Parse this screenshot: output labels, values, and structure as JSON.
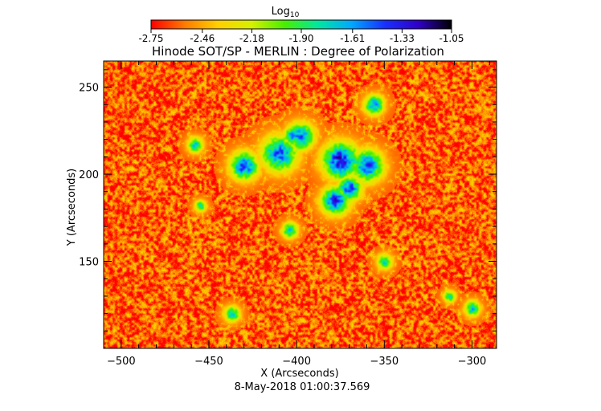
{
  "chart_data": {
    "type": "heatmap",
    "title": "Hinode SOT/SP - MERLIN : Degree of Polarization",
    "xlabel": "X (Arcseconds)",
    "ylabel": "Y (Arcseconds)",
    "timestamp": "8-May-2018 01:00:37.569",
    "xlim": [
      -510,
      -286
    ],
    "ylim": [
      100,
      265
    ],
    "xticks": [
      -500,
      -450,
      -400,
      -350,
      -300
    ],
    "yticks": [
      150,
      200,
      250
    ],
    "colorbar": {
      "label_base": "Log",
      "label_sub": "10",
      "range": [
        -2.75,
        -1.05
      ],
      "ticks": [
        "-2.75",
        "-2.46",
        "-2.18",
        "-1.90",
        "-1.61",
        "-1.33",
        "-1.05"
      ],
      "colormap": [
        "#ff0000",
        "#ff7a00",
        "#ffd000",
        "#d8f000",
        "#48f000",
        "#00e8a0",
        "#00a8ff",
        "#1830ff",
        "#3000c8",
        "#000000"
      ]
    },
    "background_level": -2.6,
    "features": [
      {
        "x": -430,
        "y": 205,
        "r": 7,
        "peak": -1.45
      },
      {
        "x": -410,
        "y": 212,
        "r": 9,
        "peak": -1.5
      },
      {
        "x": -398,
        "y": 222,
        "r": 7,
        "peak": -1.55
      },
      {
        "x": -375,
        "y": 208,
        "r": 9,
        "peak": -1.3
      },
      {
        "x": -360,
        "y": 205,
        "r": 8,
        "peak": -1.45
      },
      {
        "x": -378,
        "y": 185,
        "r": 7,
        "peak": -1.4
      },
      {
        "x": -370,
        "y": 192,
        "r": 6,
        "peak": -1.45
      },
      {
        "x": -356,
        "y": 240,
        "r": 5,
        "peak": -1.6
      },
      {
        "x": -404,
        "y": 168,
        "r": 4,
        "peak": -1.7
      },
      {
        "x": -300,
        "y": 123,
        "r": 4,
        "peak": -1.7
      },
      {
        "x": -313,
        "y": 130,
        "r": 3,
        "peak": -1.75
      },
      {
        "x": -437,
        "y": 120,
        "r": 4,
        "peak": -1.7
      },
      {
        "x": -458,
        "y": 217,
        "r": 4,
        "peak": -1.75
      },
      {
        "x": -455,
        "y": 182,
        "r": 3,
        "peak": -1.8
      },
      {
        "x": -350,
        "y": 150,
        "r": 4,
        "peak": -1.8
      },
      {
        "x": -402,
        "y": 222,
        "r": 5,
        "peak": -1.6
      }
    ]
  }
}
